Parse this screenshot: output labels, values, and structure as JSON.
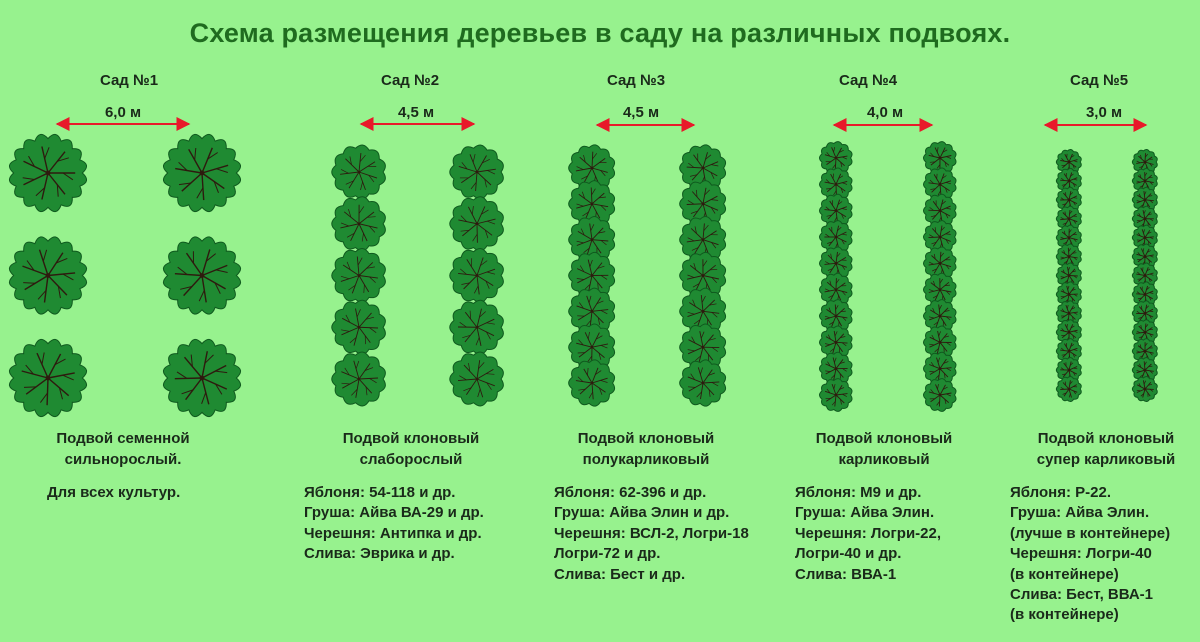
{
  "title": "Схема размещения деревьев в саду на различных подвоях.",
  "colors": {
    "background": "#97f28e",
    "title": "#1f6b1f",
    "tree_fill": "#1f8a32",
    "tree_edge": "#0f5a1e",
    "branches": "#2e1a0e",
    "arrow": "#e8192a"
  },
  "gardens": [
    {
      "name": "Сад №1",
      "spacing": "6,0 м",
      "rootstock": [
        "Подвой семенной",
        "сильнорослый."
      ],
      "crops": [
        "Для всех культур."
      ]
    },
    {
      "name": "Сад №2",
      "spacing": "4,5 м",
      "rootstock": [
        "Подвой клоновый",
        "слаборослый"
      ],
      "crops": [
        "Яблоня: 54-118 и др.",
        "Груша: Айва ВА-29 и др.",
        "Черешня: Антипка и др.",
        "Слива: Эврика и др."
      ]
    },
    {
      "name": "Сад №3",
      "spacing": "4,5 м",
      "rootstock": [
        "Подвой клоновый",
        "полукарликовый"
      ],
      "crops": [
        "Яблоня: 62-396 и др.",
        "Груша: Айва Элин и др.",
        "Черешня: ВСЛ-2, Логри-18",
        "Логри-72 и др.",
        "Слива: Бест и др."
      ]
    },
    {
      "name": "Сад №4",
      "spacing": "4,0 м",
      "rootstock": [
        "Подвой клоновый",
        "карликовый"
      ],
      "crops": [
        "Яблоня: М9 и др.",
        "Груша: Айва Элин.",
        "Черешня: Логри-22,",
        "Логри-40 и др.",
        "Слива: ВВА-1"
      ]
    },
    {
      "name": "Сад №5",
      "spacing": "3,0 м",
      "rootstock": [
        "Подвой клоновый",
        "супер карликовый"
      ],
      "crops": [
        "Яблоня: Р-22.",
        "Груша: Айва Элин.",
        "(лучше в контейнере)",
        "Черешня: Логри-40",
        "(в контейнере)",
        "Слива: Бест, ВВА-1",
        "(в контейнере)"
      ]
    }
  ]
}
